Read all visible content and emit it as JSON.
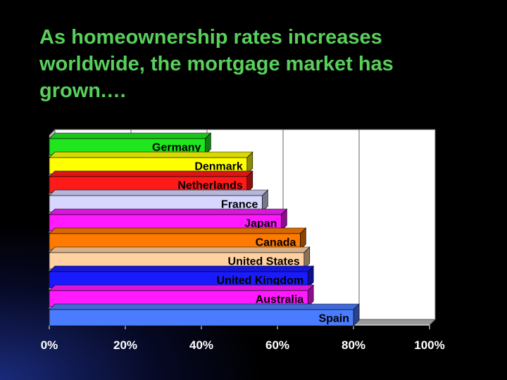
{
  "slide": {
    "title": "As homeownership rates increases worldwide, the mortgage market has grown.…"
  },
  "chart_data": {
    "type": "bar",
    "orientation": "horizontal",
    "style": "3d",
    "title": "",
    "xlabel": "",
    "ylabel": "",
    "xlim": [
      0,
      100
    ],
    "x_tick_labels": [
      "0%",
      "20%",
      "40%",
      "60%",
      "80%",
      "100%"
    ],
    "grid": true,
    "legend": "none",
    "categories": [
      "Germany",
      "Denmark",
      "Netherlands",
      "France",
      "Japan",
      "Canada",
      "United States",
      "United Kingdom",
      "Australia",
      "Spain"
    ],
    "values": [
      41,
      52,
      52,
      56,
      61,
      66,
      67,
      68,
      68,
      80
    ],
    "colors": [
      "#1fe61f",
      "#ffff00",
      "#ff1a1a",
      "#d6d6ff",
      "#ff1aff",
      "#ff7a00",
      "#ffd0a0",
      "#1a1aff",
      "#ff1aff",
      "#4a7cff"
    ]
  }
}
